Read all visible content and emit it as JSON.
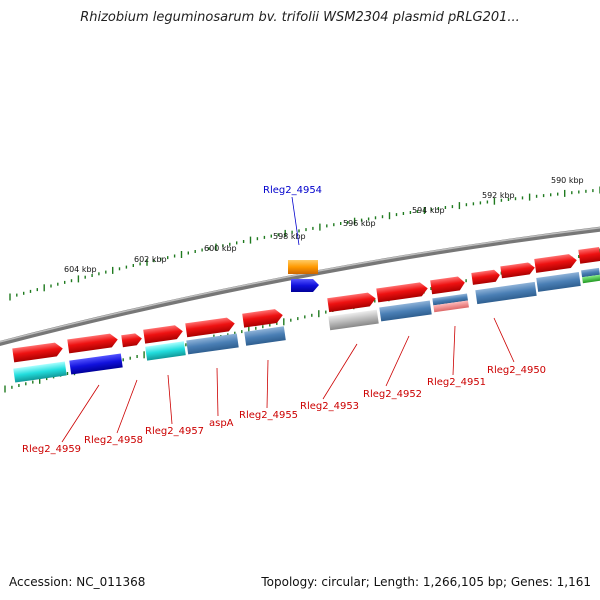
{
  "title": "Rhizobium leguminosarum bv. trifolii WSM2304 plasmid pRLG201...",
  "footer": {
    "accession": "Accession: NC_011368",
    "summary": "Topology: circular; Length: 1,266,105 bp; Genes: 1,161"
  },
  "scale_labels": [
    "604 kbp",
    "602 kbp",
    "600 kbp",
    "598 kbp",
    "596 kbp",
    "594 kbp",
    "592 kbp",
    "590 kbp"
  ],
  "gene_labels": [
    {
      "text": "Rleg2_4954",
      "color": "#0000cc"
    },
    {
      "text": "Rleg2_4959",
      "color": "#cc0000"
    },
    {
      "text": "Rleg2_4958",
      "color": "#cc0000"
    },
    {
      "text": "Rleg2_4957",
      "color": "#cc0000"
    },
    {
      "text": "aspA",
      "color": "#cc0000"
    },
    {
      "text": "Rleg2_4955",
      "color": "#cc0000"
    },
    {
      "text": "Rleg2_4953",
      "color": "#cc0000"
    },
    {
      "text": "Rleg2_4952",
      "color": "#cc0000"
    },
    {
      "text": "Rleg2_4951",
      "color": "#cc0000"
    },
    {
      "text": "Rleg2_4950",
      "color": "#cc0000"
    }
  ],
  "colors": {
    "backbone": "#8a8a8a",
    "tick": "#1f7a1f",
    "cds": "#ee1111",
    "blast_blue": "#4a7fb5",
    "cyan": "#22dddd",
    "dark_blue": "#1111dd",
    "orange": "#ff9900",
    "gray": "#bbbbbb",
    "pink": "#ee8888",
    "green": "#33bb33"
  }
}
